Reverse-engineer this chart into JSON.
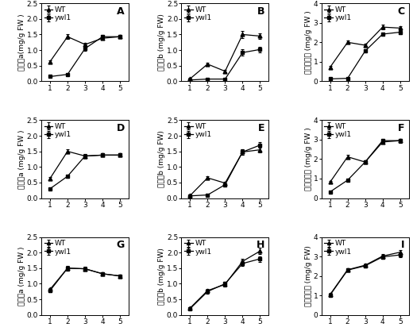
{
  "x": [
    1,
    2,
    3,
    4,
    5
  ],
  "panels": [
    {
      "label": "A",
      "ylabel": "叶绿素a(mg/g FW )",
      "ylim": [
        0,
        2.5
      ],
      "yticks": [
        0,
        0.5,
        1.0,
        1.5,
        2.0,
        2.5
      ],
      "WT": [
        0.63,
        1.43,
        1.18,
        1.38,
        1.43
      ],
      "WT_err": [
        0.04,
        0.07,
        0.06,
        0.05,
        0.05
      ],
      "ywl1": [
        0.15,
        0.22,
        1.05,
        1.43,
        1.43
      ],
      "ywl1_err": [
        0.02,
        0.03,
        0.07,
        0.06,
        0.05
      ]
    },
    {
      "label": "B",
      "ylabel": "叶绿素b (mg/g FW)",
      "ylim": [
        0,
        2.5
      ],
      "yticks": [
        0,
        0.5,
        1.0,
        1.5,
        2.0,
        2.5
      ],
      "WT": [
        0.08,
        0.55,
        0.32,
        1.5,
        1.45
      ],
      "WT_err": [
        0.02,
        0.05,
        0.04,
        0.12,
        0.1
      ],
      "ywl1": [
        0.04,
        0.07,
        0.07,
        0.92,
        1.02
      ],
      "ywl1_err": [
        0.01,
        0.02,
        0.02,
        0.1,
        0.09
      ]
    },
    {
      "label": "C",
      "ylabel": "叶绿素含量 (mg/g FW )",
      "ylim": [
        0,
        4
      ],
      "yticks": [
        0,
        1,
        2,
        3,
        4
      ],
      "WT": [
        0.72,
        2.0,
        1.85,
        2.78,
        2.73
      ],
      "WT_err": [
        0.05,
        0.09,
        0.08,
        0.11,
        0.09
      ],
      "ywl1": [
        0.12,
        0.15,
        1.55,
        2.42,
        2.52
      ],
      "ywl1_err": [
        0.02,
        0.03,
        0.08,
        0.09,
        0.09
      ]
    },
    {
      "label": "D",
      "ylabel": "叶绿素a (mg/g FW )",
      "ylim": [
        0,
        2.5
      ],
      "yticks": [
        0,
        0.5,
        1.0,
        1.5,
        2.0,
        2.5
      ],
      "WT": [
        0.63,
        1.5,
        1.35,
        1.38,
        1.38
      ],
      "WT_err": [
        0.04,
        0.07,
        0.06,
        0.05,
        0.05
      ],
      "ywl1": [
        0.3,
        0.7,
        1.35,
        1.38,
        1.38
      ],
      "ywl1_err": [
        0.03,
        0.05,
        0.06,
        0.05,
        0.05
      ]
    },
    {
      "label": "E",
      "ylabel": "叶绿素b (mg/g FW)",
      "ylim": [
        0,
        2.5
      ],
      "yticks": [
        0,
        0.5,
        1.0,
        1.5,
        2.0,
        2.5
      ],
      "WT": [
        0.08,
        0.65,
        0.48,
        1.48,
        1.55
      ],
      "WT_err": [
        0.02,
        0.05,
        0.04,
        0.09,
        0.09
      ],
      "ywl1": [
        0.07,
        0.1,
        0.43,
        1.48,
        1.7
      ],
      "ywl1_err": [
        0.02,
        0.03,
        0.04,
        0.08,
        0.09
      ]
    },
    {
      "label": "F",
      "ylabel": "叶绿素含量 (mg/g FW )",
      "ylim": [
        0,
        4
      ],
      "yticks": [
        0,
        1,
        2,
        3,
        4
      ],
      "WT": [
        0.82,
        2.12,
        1.85,
        2.88,
        2.95
      ],
      "WT_err": [
        0.05,
        0.09,
        0.08,
        0.1,
        0.1
      ],
      "ywl1": [
        0.32,
        0.92,
        1.85,
        2.95,
        2.95
      ],
      "ywl1_err": [
        0.03,
        0.06,
        0.08,
        0.09,
        0.09
      ]
    },
    {
      "label": "G",
      "ylabel": "叶绿素a (mg/g FW )",
      "ylim": [
        0,
        2.5
      ],
      "yticks": [
        0,
        0.5,
        1.0,
        1.5,
        2.0,
        2.5
      ],
      "WT": [
        0.82,
        1.5,
        1.48,
        1.32,
        1.25
      ],
      "WT_err": [
        0.05,
        0.07,
        0.06,
        0.05,
        0.05
      ],
      "ywl1": [
        0.78,
        1.5,
        1.48,
        1.32,
        1.25
      ],
      "ywl1_err": [
        0.05,
        0.07,
        0.06,
        0.05,
        0.05
      ]
    },
    {
      "label": "H",
      "ylabel": "叶绿素b (mg/g FW)",
      "ylim": [
        0,
        2.5
      ],
      "yticks": [
        0,
        0.5,
        1.0,
        1.5,
        2.0,
        2.5
      ],
      "WT": [
        0.22,
        0.78,
        0.98,
        1.72,
        2.05
      ],
      "WT_err": [
        0.03,
        0.06,
        0.07,
        0.09,
        0.1
      ],
      "ywl1": [
        0.2,
        0.75,
        1.0,
        1.65,
        1.8
      ],
      "ywl1_err": [
        0.03,
        0.06,
        0.07,
        0.09,
        0.09
      ]
    },
    {
      "label": "I",
      "ylabel": "叶绿素含量 (mg/g FW)",
      "ylim": [
        0,
        4
      ],
      "yticks": [
        0,
        1,
        2,
        3,
        4
      ],
      "WT": [
        1.05,
        2.32,
        2.55,
        3.02,
        3.22
      ],
      "WT_err": [
        0.06,
        0.09,
        0.09,
        0.1,
        0.11
      ],
      "ywl1": [
        1.02,
        2.3,
        2.52,
        2.98,
        3.08
      ],
      "ywl1_err": [
        0.06,
        0.09,
        0.09,
        0.1,
        0.1
      ]
    }
  ],
  "wt_color": "#000000",
  "ywl1_color": "#000000",
  "wt_marker": "^",
  "ywl1_marker": "s",
  "fontsize_label": 6.5,
  "fontsize_tick": 6.5,
  "fontsize_legend": 6.5,
  "fontsize_panel": 9,
  "plot_bg": "#ffffff",
  "fig_bg": "#ffffff"
}
